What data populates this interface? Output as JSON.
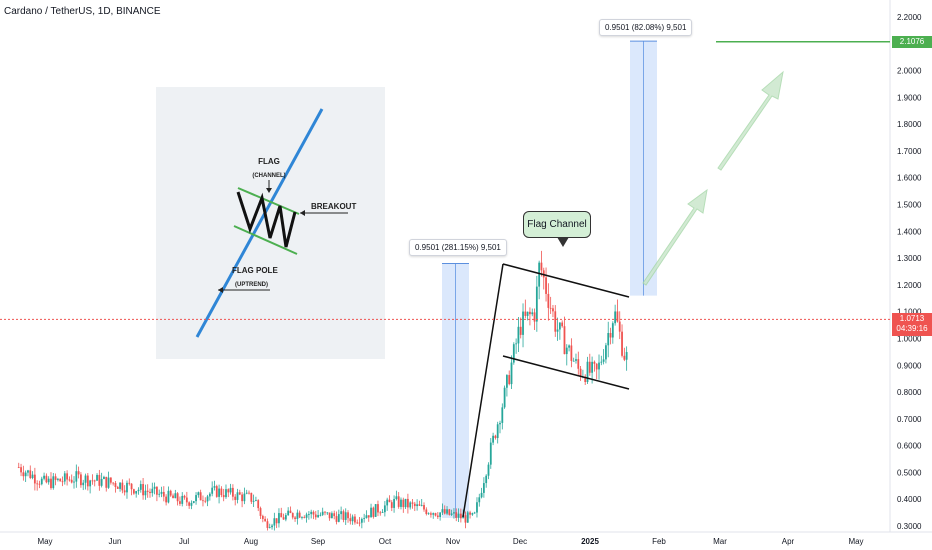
{
  "header": {
    "title": "Cardano / TetherUS, 1D, BINANCE"
  },
  "chart_data": {
    "type": "candlestick",
    "x_ticks": [
      "May",
      "Jun",
      "Jul",
      "Aug",
      "Sep",
      "Oct",
      "Nov",
      "Dec",
      "2025",
      "Feb",
      "Mar",
      "Apr",
      "May"
    ],
    "y_ticks": [
      "2.2000",
      "2.1000",
      "2.0000",
      "1.9000",
      "1.8000",
      "1.7000",
      "1.6000",
      "1.5000",
      "1.4000",
      "1.3000",
      "1.2000",
      "1.1000",
      "1.0000",
      "0.9000",
      "0.8000",
      "0.7000",
      "0.6000",
      "0.5000",
      "0.4000",
      "0.3000"
    ],
    "ylim": [
      0.29,
      2.21
    ],
    "approx_close_path": [
      {
        "x": "Apr 20",
        "y": 0.52
      },
      {
        "x": "May 1",
        "y": 0.46
      },
      {
        "x": "May 15",
        "y": 0.48
      },
      {
        "x": "Jun 1",
        "y": 0.46
      },
      {
        "x": "Jun 15",
        "y": 0.43
      },
      {
        "x": "Jul 1",
        "y": 0.39
      },
      {
        "x": "Jul 15",
        "y": 0.43
      },
      {
        "x": "Aug 1",
        "y": 0.4
      },
      {
        "x": "Aug 5",
        "y": 0.31
      },
      {
        "x": "Aug 20",
        "y": 0.35
      },
      {
        "x": "Sep 1",
        "y": 0.34
      },
      {
        "x": "Sep 15",
        "y": 0.33
      },
      {
        "x": "Oct 1",
        "y": 0.39
      },
      {
        "x": "Oct 15",
        "y": 0.36
      },
      {
        "x": "Nov 1",
        "y": 0.33
      },
      {
        "x": "Nov 5",
        "y": 0.33
      },
      {
        "x": "Nov 12",
        "y": 0.58
      },
      {
        "x": "Nov 18",
        "y": 0.78
      },
      {
        "x": "Nov 25",
        "y": 1.05
      },
      {
        "x": "Dec 1",
        "y": 1.1
      },
      {
        "x": "Dec 3",
        "y": 1.28
      },
      {
        "x": "Dec 10",
        "y": 1.05
      },
      {
        "x": "Dec 20",
        "y": 0.88
      },
      {
        "x": "Dec 28",
        "y": 0.87
      },
      {
        "x": "Jan 5",
        "y": 1.1
      },
      {
        "x": "Jan 10",
        "y": 0.92
      },
      {
        "x": "Jan 18",
        "y": 1.1
      },
      {
        "x": "Jan 21",
        "y": 1.0713
      }
    ],
    "current_price": 1.0713,
    "target_price": 2.1076,
    "countdown": "04:39:16"
  },
  "measurements": [
    {
      "label": "0.9501 (281.15%) 9,501",
      "from": 0.33,
      "to": 1.28
    },
    {
      "label": "0.9501 (82.08%) 9,501",
      "from": 1.16,
      "to": 2.11
    }
  ],
  "annotations": {
    "flag_channel_label": "Flag Channel",
    "inset": {
      "flag": "FLAG",
      "channel": "(CHANNEL)",
      "breakout": "BREAKOUT",
      "flag_pole": "FLAG POLE",
      "uptrend": "(UPTREND)"
    }
  },
  "colors": {
    "up": "#26a69a",
    "down": "#ef5350",
    "target": "#4caf50",
    "current_price": "#ef5350",
    "measure_fill": "#cfe0fb",
    "projection": "#c8e6c9"
  }
}
